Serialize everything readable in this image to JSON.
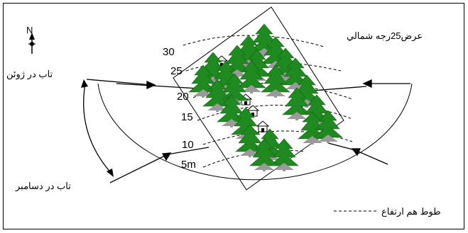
{
  "north_label": "N",
  "latitude_label": "عرض25رجه شمالي",
  "summer_sun_label": "تاب در ژوئن",
  "winter_sun_label": "تاب در دسامبر",
  "contour_legend_label": "طوط هم ارتفاع",
  "elevations": [
    "30",
    "25",
    "20",
    "15",
    "10",
    "5m"
  ],
  "colors": {
    "tree": "#1f8a1f",
    "tree_dark": "#156615",
    "house": "#9a9a9a",
    "line": "#000000"
  }
}
